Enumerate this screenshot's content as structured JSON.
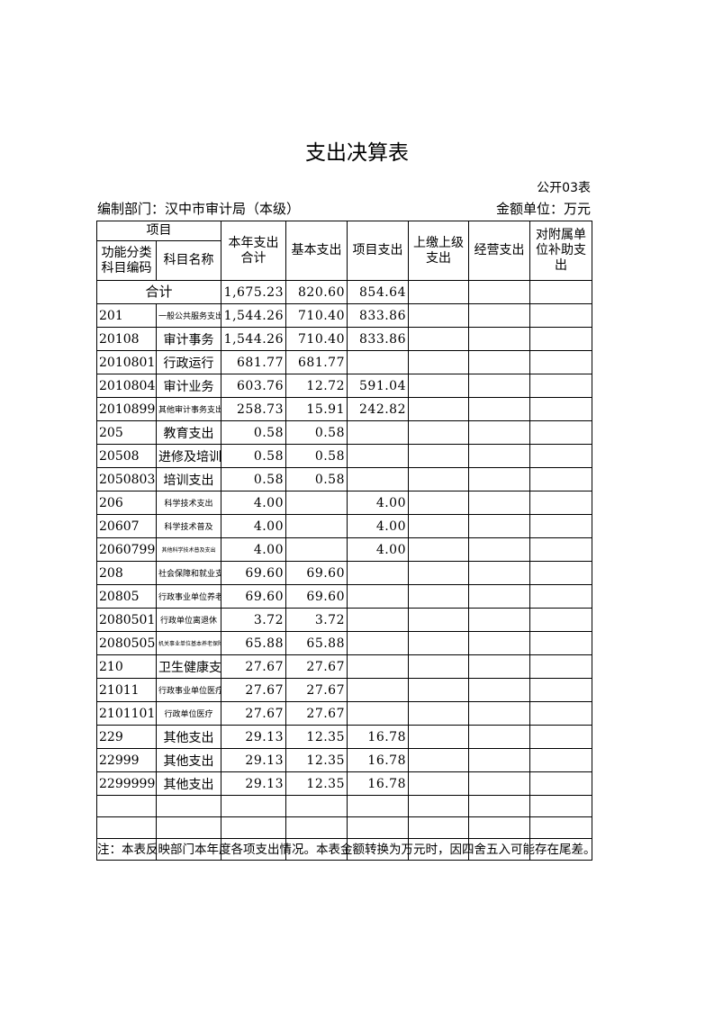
{
  "title": "支出决算表",
  "table_no": "公开03表",
  "department": "编制部门：汉中市审计局（本级）",
  "unit": "金额单位：万元",
  "headers": {
    "item": "项目",
    "code": "功能分类科目编码",
    "name": "科目名称",
    "total": "本年支出合计",
    "basic": "基本支出",
    "project": "项目支出",
    "upper": "上缴上级支出",
    "business": "经营支出",
    "subsidy": "对附属单位补助支出"
  },
  "total_row": {
    "label": "合计",
    "total": "1,675.23",
    "basic": "820.60",
    "project": "854.64"
  },
  "rows": [
    {
      "code": "201",
      "name": "一般公共服务支出",
      "total": "1,544.26",
      "basic": "710.40",
      "project": "833.86",
      "size": "s"
    },
    {
      "code": "20108",
      "name": "审计事务",
      "total": "1,544.26",
      "basic": "710.40",
      "project": "833.86",
      "size": ""
    },
    {
      "code": "2010801",
      "name": "行政运行",
      "total": "681.77",
      "basic": "681.77",
      "project": "",
      "size": ""
    },
    {
      "code": "2010804",
      "name": "审计业务",
      "total": "603.76",
      "basic": "12.72",
      "project": "591.04",
      "size": ""
    },
    {
      "code": "2010899",
      "name": "其他审计事务支出",
      "total": "258.73",
      "basic": "15.91",
      "project": "242.82",
      "size": "s"
    },
    {
      "code": "205",
      "name": "教育支出",
      "total": "0.58",
      "basic": "0.58",
      "project": "",
      "size": ""
    },
    {
      "code": "20508",
      "name": "进修及培训",
      "total": "0.58",
      "basic": "0.58",
      "project": "",
      "size": ""
    },
    {
      "code": "2050803",
      "name": "培训支出",
      "total": "0.58",
      "basic": "0.58",
      "project": "",
      "size": ""
    },
    {
      "code": "206",
      "name": "科学技术支出",
      "total": "4.00",
      "basic": "",
      "project": "4.00",
      "size": "s"
    },
    {
      "code": "20607",
      "name": "科学技术普及",
      "total": "4.00",
      "basic": "",
      "project": "4.00",
      "size": "s"
    },
    {
      "code": "2060799",
      "name": "其他科学技术普及支出",
      "total": "4.00",
      "basic": "",
      "project": "4.00",
      "size": "xs"
    },
    {
      "code": "208",
      "name": "社会保障和就业支出",
      "total": "69.60",
      "basic": "69.60",
      "project": "",
      "size": "s"
    },
    {
      "code": "20805",
      "name": "行政事业单位养老支出",
      "total": "69.60",
      "basic": "69.60",
      "project": "",
      "size": "s"
    },
    {
      "code": "2080501",
      "name": "行政单位离退休",
      "total": "3.72",
      "basic": "3.72",
      "project": "",
      "size": "s"
    },
    {
      "code": "2080505",
      "name": "机关事业单位基本养老保险缴费支出",
      "total": "65.88",
      "basic": "65.88",
      "project": "",
      "size": "xs"
    },
    {
      "code": "210",
      "name": "卫生健康支出",
      "total": "27.67",
      "basic": "27.67",
      "project": "",
      "size": ""
    },
    {
      "code": "21011",
      "name": "行政事业单位医疗",
      "total": "27.67",
      "basic": "27.67",
      "project": "",
      "size": "s"
    },
    {
      "code": "2101101",
      "name": "行政单位医疗",
      "total": "27.67",
      "basic": "27.67",
      "project": "",
      "size": "s"
    },
    {
      "code": "229",
      "name": "其他支出",
      "total": "29.13",
      "basic": "12.35",
      "project": "16.78",
      "size": ""
    },
    {
      "code": "22999",
      "name": "其他支出",
      "total": "29.13",
      "basic": "12.35",
      "project": "16.78",
      "size": ""
    },
    {
      "code": "2299999",
      "name": "其他支出",
      "total": "29.13",
      "basic": "12.35",
      "project": "16.78",
      "size": ""
    }
  ],
  "note": "注：本表反映部门本年度各项支出情况。本表金额转换为万元时，因四舍五入可能存在尾差。"
}
